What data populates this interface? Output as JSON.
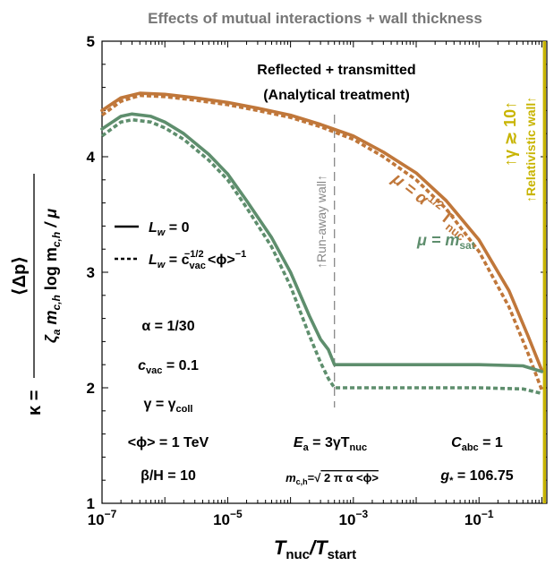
{
  "chart_data": {
    "type": "line",
    "title": "Effects of mutual interactions + wall thickness",
    "subtitle_lines": [
      "Reflected + transmitted",
      "(Analytical treatment)"
    ],
    "xlabel": {
      "main": "T",
      "sub1": "nuc",
      "sep": "/T",
      "sub2": "start"
    },
    "ylabel": {
      "kappa": "κ =",
      "numerator": "⟨Δp⟩",
      "den_zeta": "ζ",
      "den_a": "a",
      "den_m": " m",
      "den_ch": "c,h",
      "den_log": " log m",
      "den_ch2": "c,h",
      "den_mu": " / μ"
    },
    "xscale": "log",
    "xlim": [
      1e-07,
      1.2
    ],
    "ylim": [
      1,
      5
    ],
    "xticks": [
      1e-07,
      1e-05,
      0.001,
      0.1
    ],
    "xtick_labels": [
      {
        "base": "10",
        "exp": "−7"
      },
      {
        "base": "10",
        "exp": "−5"
      },
      {
        "base": "10",
        "exp": "−3"
      },
      {
        "base": "10",
        "exp": "−1"
      }
    ],
    "yticks": [
      1,
      2,
      3,
      4,
      5
    ],
    "ytick_labels": [
      "1",
      "2",
      "3",
      "4",
      "5"
    ],
    "series": [
      {
        "name": "μ = α^1/2 T_nuc",
        "color": "#c0773a",
        "style": "solid",
        "x": [
          1e-07,
          2e-07,
          4e-07,
          1e-06,
          3e-06,
          1e-05,
          3e-05,
          0.0001,
          0.0003,
          0.001,
          0.003,
          0.01,
          0.03,
          0.1,
          0.3,
          0.6,
          1.0
        ],
        "y": [
          4.4,
          4.51,
          4.55,
          4.54,
          4.51,
          4.47,
          4.42,
          4.36,
          4.28,
          4.18,
          4.04,
          3.86,
          3.62,
          3.28,
          2.84,
          2.45,
          2.15
        ]
      },
      {
        "name": "μ = α^1/2 T_nuc",
        "color": "#c0773a",
        "style": "dashed",
        "x": [
          1e-07,
          2e-07,
          4e-07,
          1e-06,
          3e-06,
          1e-05,
          3e-05,
          0.0001,
          0.0003,
          0.001,
          0.003,
          0.01,
          0.03,
          0.1,
          0.3,
          0.6,
          1.0
        ],
        "y": [
          4.36,
          4.48,
          4.53,
          4.52,
          4.49,
          4.45,
          4.4,
          4.34,
          4.26,
          4.15,
          4.0,
          3.8,
          3.55,
          3.18,
          2.7,
          2.3,
          1.98
        ]
      },
      {
        "name": "μ = m_sat",
        "color": "#5e8e6d",
        "style": "solid",
        "x": [
          1e-07,
          2e-07,
          3e-07,
          6e-07,
          1e-06,
          2e-06,
          5e-06,
          1e-05,
          2e-05,
          5e-05,
          0.0001,
          0.0002,
          0.0003,
          0.0004,
          0.0005,
          0.001,
          0.01,
          0.1,
          0.5,
          1.0
        ],
        "y": [
          4.24,
          4.35,
          4.37,
          4.35,
          4.3,
          4.2,
          4.02,
          3.85,
          3.62,
          3.3,
          3.0,
          2.62,
          2.42,
          2.33,
          2.2,
          2.2,
          2.2,
          2.2,
          2.19,
          2.14
        ]
      },
      {
        "name": "μ = m_sat",
        "color": "#5e8e6d",
        "style": "dashed",
        "x": [
          1e-07,
          2e-07,
          3e-07,
          6e-07,
          1e-06,
          2e-06,
          5e-06,
          1e-05,
          2e-05,
          5e-05,
          0.0001,
          0.0002,
          0.0003,
          0.0004,
          0.0005,
          0.001,
          0.01,
          0.1,
          0.5,
          1.0
        ],
        "y": [
          4.18,
          4.3,
          4.32,
          4.3,
          4.25,
          4.15,
          3.97,
          3.8,
          3.56,
          3.22,
          2.88,
          2.45,
          2.22,
          2.08,
          2.0,
          2.0,
          2.0,
          2.0,
          1.99,
          1.95
        ]
      }
    ],
    "legend": {
      "solid": {
        "L": "L",
        "w": "w",
        "rest": " = 0"
      },
      "dashed": {
        "L": "L",
        "w": "w",
        "eq": " = c",
        "vac": "vac",
        "exp1": "−1/2",
        "phi": " <ϕ>",
        "exp2": "−1"
      }
    },
    "annotations": {
      "mu_alpha": {
        "a": "μ = α",
        "sup": "1/2",
        "b": " T",
        "sub": "nuc"
      },
      "mu_msat": {
        "a": "μ = m",
        "sub": "sat"
      },
      "runaway": "↑Run-away wall↑",
      "relativistic": "↑Relativistic wall↑",
      "gamma": "↑γ ≳ 10↑",
      "alpha": "α = 1/30",
      "cvac": {
        "a": "c",
        "sub": "vac",
        "b": " = 0.1"
      },
      "gamma_coll": {
        "a": "γ = γ",
        "sub": "coll"
      },
      "phi": "<ϕ> = 1 TeV",
      "beta": "β/H = 10",
      "Ea": {
        "a": "E",
        "sub": "a",
        "b": " = 3γT",
        "sub2": "nuc"
      },
      "mch": {
        "a": "m",
        "sub": "c,h",
        "b": "=√",
        "c": " 2 π α <ϕ>"
      },
      "Cabc": {
        "a": "C",
        "sub": "abc",
        "b": " = 1"
      },
      "gstar": {
        "a": "g",
        "sub": "*",
        "b": " = 106.75"
      }
    },
    "vlines": [
      {
        "x": 0.0005,
        "color": "#888888",
        "style": "dashed"
      },
      {
        "x": 1.1,
        "color": "#c8b400",
        "style": "solid"
      }
    ],
    "colors": {
      "orange": "#c0773a",
      "green": "#5e8e6d",
      "yellow": "#c8b400",
      "gray": "#888888",
      "title_gray": "#777777"
    },
    "grid": false,
    "legend_placement": "left"
  }
}
